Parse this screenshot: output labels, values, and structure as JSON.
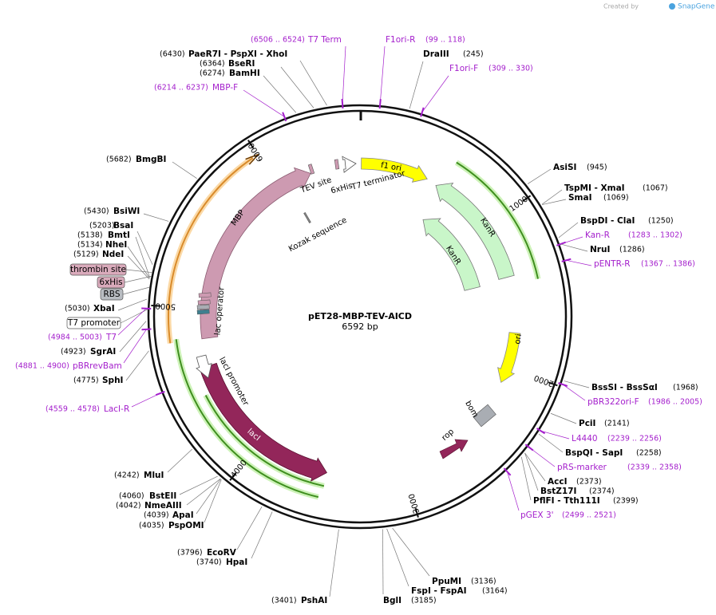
{
  "credit": {
    "prefix": "Created by",
    "brand": "SnapGene"
  },
  "map": {
    "name": "pET28-MBP-TEV-AICD",
    "length": 6592,
    "unit": "bp",
    "ticks": [
      1000,
      2000,
      3000,
      4000,
      5000,
      6000
    ]
  },
  "features": [
    {
      "name": "f1 ori"
    },
    {
      "name": "KanR"
    },
    {
      "name": "KanR"
    },
    {
      "name": "ori"
    },
    {
      "name": "lacI"
    },
    {
      "name": "MBP"
    },
    {
      "name": "lacI promoter"
    },
    {
      "name": "T7 terminator"
    },
    {
      "name": "TEV site"
    },
    {
      "name": "6xHis"
    },
    {
      "name": "Kozak sequence"
    },
    {
      "name": "lac operator"
    },
    {
      "name": "rop"
    },
    {
      "name": "bom"
    }
  ],
  "tags": [
    {
      "name": "thrombin site",
      "fill": "#d9aabb"
    },
    {
      "name": "6xHis",
      "fill": "#d9aabb"
    },
    {
      "name": "RBS",
      "fill": "#b9bdc2"
    },
    {
      "name": "T7 promoter",
      "fill": "#ffffff"
    }
  ],
  "sites": [
    {
      "name": "T7 Term",
      "position": "(6506 .. 6524)",
      "color": "#a41fcc"
    },
    {
      "name": "F1ori-R",
      "position": "(99 .. 118)",
      "color": "#a41fcc"
    },
    {
      "name": "DraIII",
      "position": "(245)",
      "color": "#000000"
    },
    {
      "name": "F1ori-F",
      "position": "(309 .. 330)",
      "color": "#a41fcc"
    },
    {
      "name": "PaeR7I - PspXI - XhoI",
      "position": "(6430)",
      "color": "#000000"
    },
    {
      "name": "BseRI",
      "position": "(6364)",
      "color": "#000000"
    },
    {
      "name": "BamHI",
      "position": "(6274)",
      "color": "#000000"
    },
    {
      "name": "MBP-F",
      "position": "(6214 .. 6237)",
      "color": "#a41fcc"
    },
    {
      "name": "BmgBI",
      "position": "(5682)",
      "color": "#000000"
    },
    {
      "name": "BsiWI",
      "position": "(5430)",
      "color": "#000000"
    },
    {
      "name": "BsaI",
      "position": "(5203)",
      "color": "#000000"
    },
    {
      "name": "BmtI",
      "position": "(5138)",
      "color": "#000000"
    },
    {
      "name": "NheI",
      "position": "(5134)",
      "color": "#000000"
    },
    {
      "name": "NdeI",
      "position": "(5129)",
      "color": "#000000"
    },
    {
      "name": "XbaI",
      "position": "(5030)",
      "color": "#000000"
    },
    {
      "name": "T7",
      "position": "(4984 .. 5003)",
      "color": "#a41fcc"
    },
    {
      "name": "SgrAI",
      "position": "(4923)",
      "color": "#000000"
    },
    {
      "name": "pBRrevBam",
      "position": "(4881 .. 4900)",
      "color": "#a41fcc"
    },
    {
      "name": "SphI",
      "position": "(4775)",
      "color": "#000000"
    },
    {
      "name": "LacI-R",
      "position": "(4559 .. 4578)",
      "color": "#a41fcc"
    },
    {
      "name": "MluI",
      "position": "(4242)",
      "color": "#000000"
    },
    {
      "name": "BstEII",
      "position": "(4060)",
      "color": "#000000"
    },
    {
      "name": "NmeAIII",
      "position": "(4042)",
      "color": "#000000"
    },
    {
      "name": "ApaI",
      "position": "(4039)",
      "color": "#000000"
    },
    {
      "name": "PspOMI",
      "position": "(4035)",
      "color": "#000000"
    },
    {
      "name": "EcoRV",
      "position": "(3796)",
      "color": "#000000"
    },
    {
      "name": "HpaI",
      "position": "(3740)",
      "color": "#000000"
    },
    {
      "name": "PshAI",
      "position": "(3401)",
      "color": "#000000"
    },
    {
      "name": "BglI",
      "position": "(3185)",
      "color": "#000000"
    },
    {
      "name": "FspI - FspAI",
      "position": "(3164)",
      "color": "#000000"
    },
    {
      "name": "PpuMI",
      "position": "(3136)",
      "color": "#000000"
    },
    {
      "name": "AsiSI",
      "position": "(945)",
      "color": "#000000"
    },
    {
      "name": "TspMI - XmaI",
      "position": "(1067)",
      "color": "#000000"
    },
    {
      "name": "SmaI",
      "position": "(1069)",
      "color": "#000000"
    },
    {
      "name": "BspDI - ClaI",
      "position": "(1250)",
      "color": "#000000"
    },
    {
      "name": "Kan-R",
      "position": "(1283 .. 1302)",
      "color": "#a41fcc"
    },
    {
      "name": "NruI",
      "position": "(1286)",
      "color": "#000000"
    },
    {
      "name": "pENTR-R",
      "position": "(1367 .. 1386)",
      "color": "#a41fcc"
    },
    {
      "name": "BssSI - BssSαI",
      "position": "(1968)",
      "color": "#000000"
    },
    {
      "name": "pBR322ori-F",
      "position": "(1986 .. 2005)",
      "color": "#a41fcc"
    },
    {
      "name": "PciI",
      "position": "(2141)",
      "color": "#000000"
    },
    {
      "name": "L4440",
      "position": "(2239 .. 2256)",
      "color": "#a41fcc"
    },
    {
      "name": "BspQI - SapI",
      "position": "(2258)",
      "color": "#000000"
    },
    {
      "name": "pRS-marker",
      "position": "(2339 .. 2358)",
      "color": "#a41fcc"
    },
    {
      "name": "AccI",
      "position": "(2373)",
      "color": "#000000"
    },
    {
      "name": "BstZ17I",
      "position": "(2374)",
      "color": "#000000"
    },
    {
      "name": "PflFI - Tth111I",
      "position": "(2399)",
      "color": "#000000"
    },
    {
      "name": "pGEX 3'",
      "position": "(2499 .. 2521)",
      "color": "#a41fcc"
    }
  ]
}
